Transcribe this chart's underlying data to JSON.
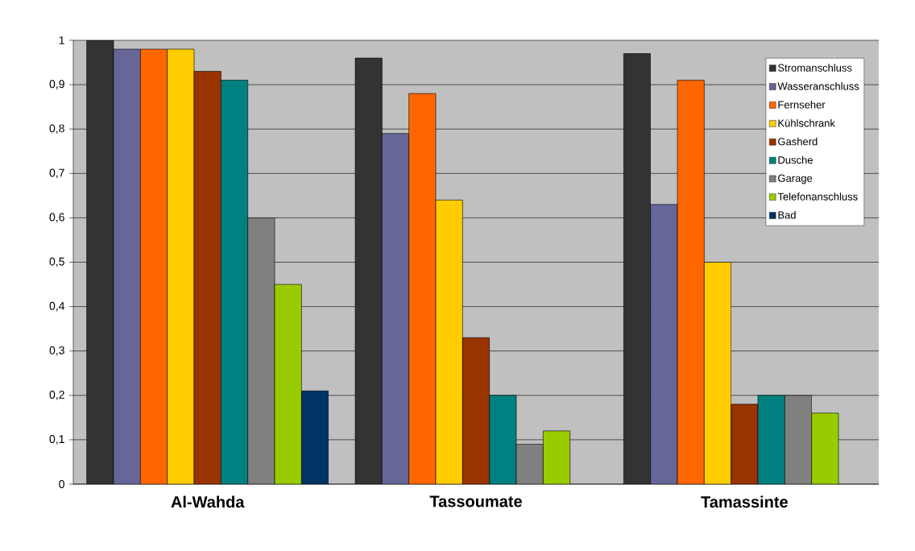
{
  "chart_data": {
    "type": "bar",
    "categories": [
      "Al-Wahda",
      "Tassoumate",
      "Tamassinte"
    ],
    "series": [
      {
        "name": "Stromanschluss",
        "color": "#333333",
        "values": [
          1.0,
          0.96,
          0.97
        ]
      },
      {
        "name": "Wasseranschluss",
        "color": "#666699",
        "values": [
          0.98,
          0.79,
          0.63
        ]
      },
      {
        "name": "Fernseher",
        "color": "#ff6600",
        "values": [
          0.98,
          0.88,
          0.91
        ]
      },
      {
        "name": "Kühlschrank",
        "color": "#ffcc00",
        "values": [
          0.98,
          0.64,
          0.5
        ]
      },
      {
        "name": "Gasherd",
        "color": "#993300",
        "values": [
          0.93,
          0.33,
          0.18
        ]
      },
      {
        "name": "Dusche",
        "color": "#008080",
        "values": [
          0.91,
          0.2,
          0.2
        ]
      },
      {
        "name": "Garage",
        "color": "#808080",
        "values": [
          0.6,
          0.09,
          0.2
        ]
      },
      {
        "name": "Telefonanschluss",
        "color": "#99cc00",
        "values": [
          0.45,
          0.12,
          0.16
        ]
      },
      {
        "name": "Bad",
        "color": "#003366",
        "values": [
          0.21,
          null,
          null
        ]
      }
    ],
    "ylim": [
      0,
      1
    ],
    "yticks": [
      0,
      {
        "value": 0.1,
        "label": "0,1"
      },
      {
        "value": 0.2,
        "label": "0,2"
      },
      {
        "value": 0.3,
        "label": "0,3"
      },
      {
        "value": 0.4,
        "label": "0,4"
      },
      {
        "value": 0.5,
        "label": "0,5"
      },
      {
        "value": 0.6,
        "label": "0,6"
      },
      {
        "value": 0.7,
        "label": "0,7"
      },
      {
        "value": 0.8,
        "label": "0,8"
      },
      {
        "value": 0.9,
        "label": "0,9"
      },
      1
    ],
    "grid": "y",
    "legend": "top right"
  }
}
